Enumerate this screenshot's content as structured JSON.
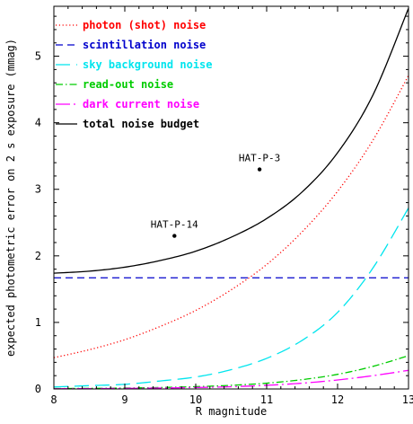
{
  "chart_data": {
    "type": "line",
    "xlabel": "R magnitude",
    "ylabel": "expected photometric error on 2 s exposure (mmag)",
    "xlim": [
      8,
      13
    ],
    "ylim": [
      0,
      5.75
    ],
    "x_ticks": [
      8,
      9,
      10,
      11,
      12,
      13
    ],
    "y_ticks": [
      0,
      1,
      2,
      3,
      4,
      5
    ],
    "grid": false,
    "legend_position": "top-left",
    "series": [
      {
        "name": "photon (shot) noise",
        "color": "#ff0000",
        "dash": "dotted",
        "x": [
          8,
          8.5,
          9,
          9.5,
          10,
          10.5,
          11,
          11.5,
          12,
          12.5,
          13
        ],
        "y": [
          0.47,
          0.59,
          0.74,
          0.94,
          1.18,
          1.49,
          1.87,
          2.36,
          2.97,
          3.74,
          4.71
        ]
      },
      {
        "name": "scintillation noise",
        "color": "#0000cc",
        "dash": "dashed",
        "x": [
          8,
          13
        ],
        "y": [
          1.67,
          1.67
        ]
      },
      {
        "name": "sky background noise",
        "color": "#00e5ee",
        "dash": "long-dash",
        "x": [
          8,
          8.5,
          9,
          9.5,
          10,
          10.5,
          11,
          11.5,
          12,
          12.5,
          13
        ],
        "y": [
          0.03,
          0.05,
          0.07,
          0.12,
          0.18,
          0.29,
          0.46,
          0.73,
          1.15,
          1.82,
          2.72
        ]
      },
      {
        "name": "read-out noise",
        "color": "#00cc00",
        "dash": "dash-dot",
        "x": [
          8,
          8.5,
          9,
          9.5,
          10,
          10.5,
          11,
          11.5,
          12,
          12.5,
          13
        ],
        "y": [
          0.006,
          0.009,
          0.014,
          0.022,
          0.035,
          0.055,
          0.087,
          0.14,
          0.22,
          0.34,
          0.5
        ]
      },
      {
        "name": "dark current noise",
        "color": "#ff00ff",
        "dash": "long-dash-dot",
        "x": [
          8,
          8.5,
          9,
          9.5,
          10,
          10.5,
          11,
          11.5,
          12,
          12.5,
          13
        ],
        "y": [
          0.0035,
          0.0055,
          0.0087,
          0.014,
          0.022,
          0.034,
          0.055,
          0.087,
          0.135,
          0.2,
          0.28
        ]
      },
      {
        "name": "total noise budget",
        "color": "#000000",
        "dash": "solid",
        "x": [
          8,
          8.5,
          9,
          9.5,
          10,
          10.5,
          11,
          11.5,
          12,
          12.5,
          13
        ],
        "y": [
          1.74,
          1.77,
          1.83,
          1.93,
          2.07,
          2.28,
          2.56,
          2.96,
          3.55,
          4.42,
          5.72
        ]
      }
    ],
    "points": [
      {
        "label": "HAT-P-14",
        "x": 9.7,
        "y": 2.3
      },
      {
        "label": "HAT-P-3",
        "x": 10.9,
        "y": 3.3
      }
    ]
  }
}
